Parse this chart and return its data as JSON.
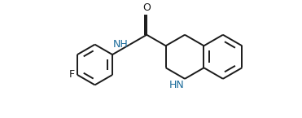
{
  "background_color": "#ffffff",
  "line_color": "#1a1a1a",
  "nh_color": "#1a6b9a",
  "o_color": "#1a1a1a",
  "f_color": "#1a1a1a",
  "line_width": 1.4,
  "font_size": 8.5,
  "xlim": [
    0,
    10
  ],
  "ylim": [
    0,
    4
  ]
}
